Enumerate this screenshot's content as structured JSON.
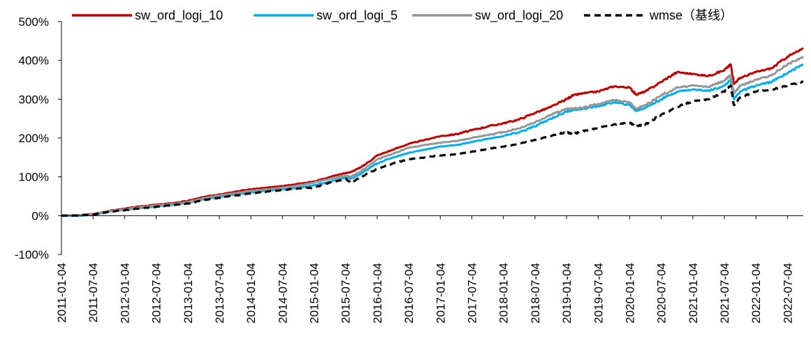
{
  "chart_data": {
    "type": "line",
    "title": "",
    "xlabel": "",
    "ylabel": "",
    "ylim": [
      -100,
      500
    ],
    "y_ticks": [
      "500%",
      "400%",
      "300%",
      "200%",
      "100%",
      "0%",
      "-100%"
    ],
    "y_tick_values": [
      500,
      400,
      300,
      200,
      100,
      0,
      -100
    ],
    "x_ticks": [
      "2011-01-04",
      "2011-07-04",
      "2012-01-04",
      "2012-07-04",
      "2013-01-04",
      "2013-07-04",
      "2014-01-04",
      "2014-07-04",
      "2015-01-04",
      "2015-07-04",
      "2016-01-04",
      "2016-07-04",
      "2017-01-04",
      "2017-07-04",
      "2018-01-04",
      "2018-07-04",
      "2019-01-04",
      "2019-07-04",
      "2020-01-04",
      "2020-07-04",
      "2021-01-04",
      "2021-07-04",
      "2022-01-04",
      "2022-07-04"
    ],
    "x_tick_values": [
      2011.0,
      2011.5,
      2012.0,
      2012.5,
      2013.0,
      2013.5,
      2014.0,
      2014.5,
      2015.0,
      2015.5,
      2016.0,
      2016.5,
      2017.0,
      2017.5,
      2018.0,
      2018.5,
      2019.0,
      2019.5,
      2020.0,
      2020.5,
      2021.0,
      2021.5,
      2022.0,
      2022.5
    ],
    "xlim": [
      2011.0,
      2022.75
    ],
    "grid": false,
    "legend_position": "top",
    "series": [
      {
        "name": "sw_ord_logi_10",
        "color": "#C00000",
        "style": "solid",
        "x": [
          2011.0,
          2011.25,
          2011.5,
          2011.75,
          2012.0,
          2012.25,
          2012.5,
          2012.75,
          2013.0,
          2013.25,
          2013.5,
          2013.75,
          2014.0,
          2014.25,
          2014.5,
          2014.75,
          2015.0,
          2015.25,
          2015.5,
          2015.58,
          2015.75,
          2016.0,
          2016.25,
          2016.5,
          2016.75,
          2017.0,
          2017.25,
          2017.5,
          2017.75,
          2018.0,
          2018.25,
          2018.5,
          2018.75,
          2019.0,
          2019.1,
          2019.25,
          2019.5,
          2019.75,
          2020.0,
          2020.1,
          2020.25,
          2020.5,
          2020.75,
          2021.0,
          2021.25,
          2021.5,
          2021.6,
          2021.65,
          2021.75,
          2022.0,
          2022.25,
          2022.5,
          2022.75
        ],
        "values": [
          0,
          1,
          4,
          12,
          18,
          24,
          28,
          32,
          38,
          48,
          55,
          62,
          68,
          72,
          76,
          82,
          88,
          100,
          110,
          112,
          125,
          155,
          170,
          185,
          195,
          205,
          210,
          220,
          230,
          238,
          248,
          265,
          280,
          300,
          310,
          315,
          320,
          333,
          330,
          312,
          320,
          345,
          370,
          365,
          360,
          375,
          390,
          340,
          355,
          370,
          380,
          410,
          430
        ]
      },
      {
        "name": "sw_ord_logi_5",
        "color": "#00B0F0",
        "style": "solid",
        "x": [
          2011.0,
          2011.25,
          2011.5,
          2011.75,
          2012.0,
          2012.25,
          2012.5,
          2012.75,
          2013.0,
          2013.25,
          2013.5,
          2013.75,
          2014.0,
          2014.25,
          2014.5,
          2014.75,
          2015.0,
          2015.25,
          2015.5,
          2015.58,
          2015.75,
          2016.0,
          2016.25,
          2016.5,
          2016.75,
          2017.0,
          2017.25,
          2017.5,
          2017.75,
          2018.0,
          2018.25,
          2018.5,
          2018.75,
          2019.0,
          2019.1,
          2019.25,
          2019.5,
          2019.75,
          2020.0,
          2020.1,
          2020.25,
          2020.5,
          2020.75,
          2021.0,
          2021.25,
          2021.5,
          2021.6,
          2021.65,
          2021.75,
          2022.0,
          2022.25,
          2022.5,
          2022.75
        ],
        "values": [
          0,
          0,
          2,
          10,
          15,
          20,
          24,
          28,
          33,
          42,
          48,
          55,
          60,
          64,
          68,
          72,
          78,
          88,
          98,
          95,
          108,
          135,
          150,
          162,
          170,
          178,
          182,
          190,
          198,
          205,
          215,
          230,
          250,
          268,
          272,
          275,
          282,
          292,
          285,
          270,
          278,
          300,
          320,
          325,
          322,
          335,
          350,
          300,
          320,
          335,
          345,
          368,
          390
        ]
      },
      {
        "name": "sw_ord_logi_20",
        "color": "#969696",
        "style": "solid",
        "x": [
          2011.0,
          2011.25,
          2011.5,
          2011.75,
          2012.0,
          2012.25,
          2012.5,
          2012.75,
          2013.0,
          2013.25,
          2013.5,
          2013.75,
          2014.0,
          2014.25,
          2014.5,
          2014.75,
          2015.0,
          2015.25,
          2015.5,
          2015.58,
          2015.75,
          2016.0,
          2016.25,
          2016.5,
          2016.75,
          2017.0,
          2017.25,
          2017.5,
          2017.75,
          2018.0,
          2018.25,
          2018.5,
          2018.75,
          2019.0,
          2019.1,
          2019.25,
          2019.5,
          2019.75,
          2020.0,
          2020.1,
          2020.25,
          2020.5,
          2020.75,
          2021.0,
          2021.25,
          2021.5,
          2021.6,
          2021.65,
          2021.75,
          2022.0,
          2022.25,
          2022.5,
          2022.75
        ],
        "values": [
          0,
          1,
          3,
          11,
          16,
          22,
          26,
          30,
          35,
          45,
          52,
          58,
          64,
          68,
          72,
          78,
          85,
          95,
          103,
          100,
          115,
          145,
          160,
          175,
          182,
          188,
          192,
          200,
          208,
          215,
          225,
          240,
          260,
          275,
          276,
          278,
          288,
          298,
          292,
          275,
          285,
          310,
          330,
          335,
          332,
          348,
          362,
          315,
          335,
          350,
          362,
          390,
          410
        ]
      },
      {
        "name": "wmse（基线）",
        "color": "#000000",
        "style": "dashed",
        "x": [
          2011.0,
          2011.25,
          2011.5,
          2011.75,
          2012.0,
          2012.25,
          2012.5,
          2012.75,
          2013.0,
          2013.25,
          2013.5,
          2013.75,
          2014.0,
          2014.25,
          2014.5,
          2014.75,
          2015.0,
          2015.25,
          2015.5,
          2015.58,
          2015.75,
          2016.0,
          2016.25,
          2016.5,
          2016.75,
          2017.0,
          2017.25,
          2017.5,
          2017.75,
          2018.0,
          2018.25,
          2018.5,
          2018.75,
          2019.0,
          2019.1,
          2019.25,
          2019.5,
          2019.75,
          2020.0,
          2020.1,
          2020.25,
          2020.5,
          2020.75,
          2021.0,
          2021.25,
          2021.5,
          2021.6,
          2021.65,
          2021.75,
          2022.0,
          2022.25,
          2022.5,
          2022.75
        ],
        "values": [
          0,
          0,
          3,
          10,
          14,
          19,
          23,
          27,
          31,
          40,
          46,
          52,
          57,
          62,
          66,
          70,
          72,
          85,
          95,
          85,
          100,
          120,
          135,
          145,
          150,
          155,
          158,
          165,
          172,
          178,
          185,
          195,
          205,
          215,
          210,
          218,
          225,
          235,
          240,
          230,
          235,
          260,
          280,
          295,
          300,
          320,
          335,
          285,
          305,
          320,
          325,
          335,
          345
        ]
      }
    ]
  }
}
